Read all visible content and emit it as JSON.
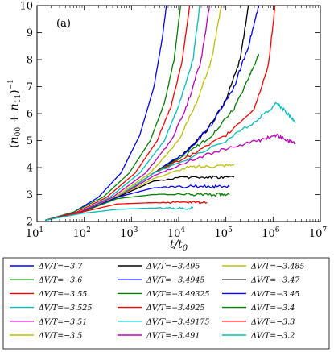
{
  "chart_data": {
    "type": "line",
    "panel_label": "(a)",
    "xlabel": "t/t0",
    "xlabel_main": "t/t",
    "xlabel_sub": "0",
    "ylabel": "(n00+n11)^-1",
    "ylabel_open": "(",
    "ylabel_n1": "n",
    "ylabel_s1": "00",
    "ylabel_plus": " + ",
    "ylabel_n2": "n",
    "ylabel_s2": "11",
    "ylabel_close": ")",
    "ylabel_exp": "−1",
    "x_scale": "log",
    "xlim": [
      10,
      10000000
    ],
    "ylim": [
      2,
      10
    ],
    "x_ticks": [
      {
        "base": "10",
        "exp": "1"
      },
      {
        "base": "10",
        "exp": "2"
      },
      {
        "base": "10",
        "exp": "3"
      },
      {
        "base": "10",
        "exp": "4"
      },
      {
        "base": "10",
        "exp": "5"
      },
      {
        "base": "10",
        "exp": "6"
      },
      {
        "base": "10",
        "exp": "7"
      }
    ],
    "y_ticks": [
      "2",
      "3",
      "4",
      "5",
      "6",
      "7",
      "8",
      "9",
      "10"
    ],
    "legend_placement": "below",
    "legend_columns": 3,
    "series": [
      {
        "name": "ΔV/T=−3.7",
        "color": "#0000ff",
        "points": [
          [
            15,
            2.05
          ],
          [
            60,
            2.35
          ],
          [
            200,
            2.9
          ],
          [
            600,
            3.8
          ],
          [
            1500,
            5.2
          ],
          [
            3000,
            7.0
          ],
          [
            4500,
            8.8
          ],
          [
            5500,
            10
          ]
        ]
      },
      {
        "name": "ΔV/T=−3.6",
        "color": "#008000",
        "points": [
          [
            15,
            2.05
          ],
          [
            60,
            2.35
          ],
          [
            250,
            2.9
          ],
          [
            900,
            3.8
          ],
          [
            2500,
            5.0
          ],
          [
            5000,
            6.4
          ],
          [
            8000,
            8.0
          ],
          [
            11000,
            10
          ]
        ]
      },
      {
        "name": "ΔV/T=−3.55",
        "color": "#ff0000",
        "points": [
          [
            15,
            2.05
          ],
          [
            70,
            2.35
          ],
          [
            300,
            2.9
          ],
          [
            1200,
            3.8
          ],
          [
            3500,
            5.0
          ],
          [
            7000,
            6.3
          ],
          [
            12000,
            8.0
          ],
          [
            17000,
            10
          ]
        ]
      },
      {
        "name": "ΔV/T=−3.525",
        "color": "#00bfbf",
        "points": [
          [
            15,
            2.05
          ],
          [
            80,
            2.35
          ],
          [
            350,
            2.9
          ],
          [
            1500,
            3.8
          ],
          [
            5000,
            5.0
          ],
          [
            10000,
            6.3
          ],
          [
            20000,
            8.0
          ],
          [
            28000,
            10
          ]
        ]
      },
      {
        "name": "ΔV/T=−3.51",
        "color": "#bf00bf",
        "points": [
          [
            15,
            2.05
          ],
          [
            80,
            2.35
          ],
          [
            400,
            2.9
          ],
          [
            2000,
            3.8
          ],
          [
            7000,
            5.0
          ],
          [
            15000,
            6.3
          ],
          [
            30000,
            8.0
          ],
          [
            45000,
            10
          ]
        ]
      },
      {
        "name": "ΔV/T=−3.5",
        "color": "#bfbf00",
        "points": [
          [
            15,
            2.05
          ],
          [
            90,
            2.35
          ],
          [
            450,
            2.9
          ],
          [
            2500,
            3.8
          ],
          [
            10000,
            5.0
          ],
          [
            25000,
            6.5
          ],
          [
            50000,
            8.0
          ],
          [
            80000,
            10
          ]
        ]
      },
      {
        "name": "ΔV/T=−3.495",
        "color": "#000000",
        "points": [
          [
            15,
            2.05
          ],
          [
            90,
            2.35
          ],
          [
            500,
            2.9
          ],
          [
            3000,
            3.8
          ],
          [
            15000,
            4.6
          ],
          [
            40000,
            5.4
          ],
          [
            100000,
            6.5
          ],
          [
            200000,
            8.0
          ],
          [
            300000,
            10
          ]
        ]
      },
      {
        "name": "ΔV/T=−3.4945",
        "color": "#0000ff",
        "points": [
          [
            15,
            2.05
          ],
          [
            90,
            2.35
          ],
          [
            500,
            2.9
          ],
          [
            3000,
            3.8
          ],
          [
            15000,
            4.6
          ],
          [
            50000,
            5.6
          ],
          [
            150000,
            7.0
          ],
          [
            300000,
            8.5
          ],
          [
            500000,
            10
          ]
        ]
      },
      {
        "name": "ΔV/T=−3.49325",
        "color": "#008000",
        "points": [
          [
            15,
            2.05
          ],
          [
            90,
            2.35
          ],
          [
            500,
            2.9
          ],
          [
            3000,
            3.8
          ],
          [
            15000,
            4.5
          ],
          [
            50000,
            5.2
          ],
          [
            150000,
            6.2
          ],
          [
            300000,
            7.3
          ],
          [
            500000,
            8.2
          ]
        ]
      },
      {
        "name": "ΔV/T=−3.4925",
        "color": "#ff0000",
        "points": [
          [
            15,
            2.05
          ],
          [
            90,
            2.35
          ],
          [
            500,
            2.9
          ],
          [
            3000,
            3.8
          ],
          [
            20000,
            4.5
          ],
          [
            100000,
            5.2
          ],
          [
            400000,
            6.2
          ],
          [
            800000,
            7.8
          ],
          [
            1100000,
            10
          ]
        ]
      },
      {
        "name": "ΔV/T=−3.49175",
        "color": "#00bfbf",
        "points": [
          [
            15,
            2.05
          ],
          [
            90,
            2.35
          ],
          [
            500,
            2.9
          ],
          [
            3000,
            3.8
          ],
          [
            20000,
            4.4
          ],
          [
            100000,
            5.0
          ],
          [
            500000,
            5.8
          ],
          [
            1200000,
            6.4
          ],
          [
            2000000,
            6.0
          ],
          [
            3000000,
            5.7
          ]
        ]
      },
      {
        "name": "ΔV/T=−3.491",
        "color": "#bf00bf",
        "points": [
          [
            15,
            2.05
          ],
          [
            90,
            2.35
          ],
          [
            500,
            2.9
          ],
          [
            3000,
            3.7
          ],
          [
            20000,
            4.3
          ],
          [
            100000,
            4.7
          ],
          [
            500000,
            5.0
          ],
          [
            1200000,
            5.2
          ],
          [
            2000000,
            5.0
          ],
          [
            3000000,
            4.9
          ]
        ]
      },
      {
        "name": "ΔV/T=−3.485",
        "color": "#bfbf00",
        "points": [
          [
            15,
            2.05
          ],
          [
            90,
            2.35
          ],
          [
            500,
            2.9
          ],
          [
            3000,
            3.6
          ],
          [
            15000,
            4.0
          ],
          [
            50000,
            4.05
          ],
          [
            150000,
            4.1
          ]
        ]
      },
      {
        "name": "ΔV/T=−3.47",
        "color": "#000000",
        "points": [
          [
            15,
            2.05
          ],
          [
            90,
            2.35
          ],
          [
            500,
            2.9
          ],
          [
            3000,
            3.5
          ],
          [
            15000,
            3.65
          ],
          [
            50000,
            3.65
          ],
          [
            150000,
            3.65
          ]
        ]
      },
      {
        "name": "ΔV/T=−3.45",
        "color": "#0000ff",
        "points": [
          [
            15,
            2.05
          ],
          [
            90,
            2.35
          ],
          [
            500,
            2.9
          ],
          [
            3000,
            3.25
          ],
          [
            15000,
            3.3
          ],
          [
            50000,
            3.3
          ],
          [
            120000,
            3.3
          ]
        ]
      },
      {
        "name": "ΔV/T=−3.4",
        "color": "#008000",
        "points": [
          [
            15,
            2.05
          ],
          [
            90,
            2.35
          ],
          [
            500,
            2.85
          ],
          [
            3000,
            3.0
          ],
          [
            15000,
            3.0
          ],
          [
            50000,
            3.0
          ],
          [
            120000,
            3.0
          ]
        ]
      },
      {
        "name": "ΔV/T=−3.3",
        "color": "#ff0000",
        "points": [
          [
            15,
            2.05
          ],
          [
            90,
            2.35
          ],
          [
            500,
            2.65
          ],
          [
            3000,
            2.7
          ],
          [
            15000,
            2.7
          ],
          [
            40000,
            2.7
          ]
        ]
      },
      {
        "name": "ΔV/T=−3.2",
        "color": "#00bfbf",
        "points": [
          [
            15,
            2.05
          ],
          [
            90,
            2.3
          ],
          [
            500,
            2.45
          ],
          [
            3000,
            2.5
          ],
          [
            10000,
            2.5
          ],
          [
            20000,
            2.5
          ]
        ]
      }
    ]
  }
}
